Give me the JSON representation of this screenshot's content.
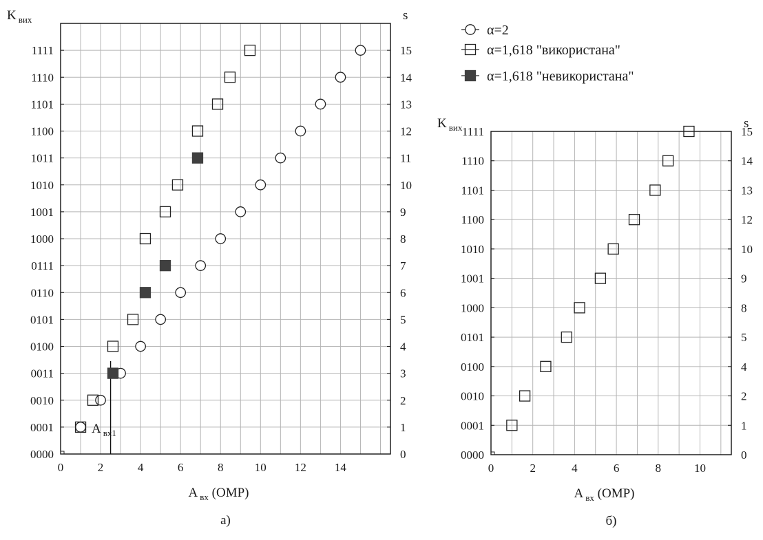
{
  "chart_data": [
    {
      "type": "scatter",
      "panel_label": "а)",
      "xlabel_main": "A",
      "xlabel_sub": "вх",
      "xlabel_suffix": " (ОМР)",
      "ylabel_main": "K",
      "ylabel_sub": "вих",
      "right_label": "s",
      "xlim": [
        0,
        16.5
      ],
      "ylim": [
        0,
        16
      ],
      "x_ticks": [
        0,
        2,
        4,
        6,
        8,
        10,
        12,
        14
      ],
      "y_tick_labels": [
        "0000",
        "0001",
        "0010",
        "0011",
        "0100",
        "0101",
        "0110",
        "0111",
        "1000",
        "1001",
        "1010",
        "1011",
        "1100",
        "1101",
        "1110",
        "1111"
      ],
      "right_tick_labels": [
        "0",
        "1",
        "2",
        "3",
        "4",
        "5",
        "6",
        "7",
        "8",
        "9",
        "10",
        "11",
        "12",
        "13",
        "14",
        "15"
      ],
      "annotation": {
        "text_main": "A",
        "text_sub": "вх1",
        "x": 2.5
      },
      "series": [
        {
          "name": "α=2",
          "marker": "circle",
          "points": [
            [
              1,
              1
            ],
            [
              2,
              2
            ],
            [
              3,
              3
            ],
            [
              4,
              4
            ],
            [
              5,
              5
            ],
            [
              6,
              6
            ],
            [
              7,
              7
            ],
            [
              8,
              8
            ],
            [
              9,
              9
            ],
            [
              10,
              10
            ],
            [
              11,
              11
            ],
            [
              12,
              12
            ],
            [
              13,
              13
            ],
            [
              14,
              14
            ],
            [
              15,
              15
            ]
          ]
        },
        {
          "name": "α=1,618 \"використана\"",
          "marker": "square-open",
          "points": [
            [
              1,
              1
            ],
            [
              1.618,
              2
            ],
            [
              2.618,
              4
            ],
            [
              3.618,
              5
            ],
            [
              4.236,
              8
            ],
            [
              5.236,
              9
            ],
            [
              5.854,
              10
            ],
            [
              6.854,
              12
            ],
            [
              7.854,
              13
            ],
            [
              8.472,
              14
            ],
            [
              9.472,
              15
            ]
          ]
        },
        {
          "name": "α=1,618 \"невикористана\"",
          "marker": "square-filled",
          "points": [
            [
              2.618,
              3
            ],
            [
              4.236,
              6
            ],
            [
              5.236,
              7
            ],
            [
              6.854,
              11
            ]
          ]
        }
      ]
    },
    {
      "type": "scatter",
      "panel_label": "б)",
      "xlabel_main": "A",
      "xlabel_sub": "вх",
      "xlabel_suffix": " (ОМР)",
      "ylabel_main": "K",
      "ylabel_sub": "вих",
      "right_label": "s",
      "xlim": [
        0,
        11.5
      ],
      "ylim": [
        0,
        11
      ],
      "x_ticks": [
        0,
        2,
        4,
        6,
        8,
        10
      ],
      "y_tick_labels": [
        "0000",
        "0001",
        "0010",
        "0100",
        "0101",
        "1000",
        "1001",
        "1010",
        "1100",
        "1101",
        "1110",
        "1111"
      ],
      "right_tick_labels": [
        "0",
        "1",
        "2",
        "4",
        "5",
        "8",
        "9",
        "10",
        "12",
        "13",
        "14",
        "15"
      ],
      "series": [
        {
          "name": "α=1,618 \"використана\"",
          "marker": "square-open",
          "points": [
            [
              1,
              1
            ],
            [
              1.618,
              2
            ],
            [
              2.618,
              3
            ],
            [
              3.618,
              4
            ],
            [
              4.236,
              5
            ],
            [
              5.236,
              6
            ],
            [
              5.854,
              7
            ],
            [
              6.854,
              8
            ],
            [
              7.854,
              9
            ],
            [
              8.472,
              10
            ],
            [
              9.472,
              11
            ]
          ]
        }
      ]
    }
  ],
  "legend": [
    {
      "label": "α=2",
      "marker": "circle"
    },
    {
      "label": "α=1,618",
      "quote": "\"використана\"",
      "marker": "square-open"
    },
    {
      "label": "α=1,618",
      "quote": "\"невикористана\"",
      "marker": "square-filled"
    }
  ],
  "colors": {
    "grid": "#b4b4b4",
    "marker_fill": "#404040",
    "frame": "#111111"
  }
}
